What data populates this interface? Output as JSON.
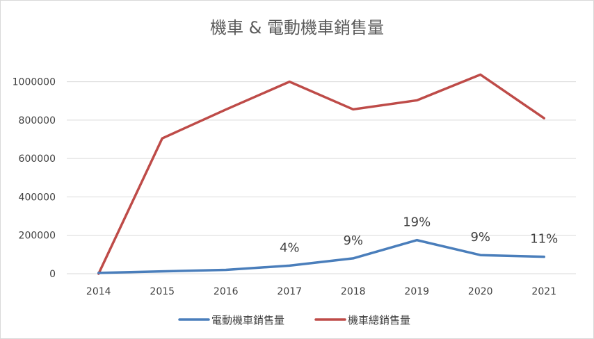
{
  "chart_data": {
    "type": "line",
    "title": "機車 & 電動機車銷售量",
    "categories": [
      "2014",
      "2015",
      "2016",
      "2017",
      "2018",
      "2019",
      "2020",
      "2021"
    ],
    "series": [
      {
        "name": "電動機車銷售量",
        "color": "#4a7ebb",
        "values": [
          4000,
          12000,
          20000,
          42000,
          80000,
          175000,
          97000,
          88000
        ]
      },
      {
        "name": "機車總銷售量",
        "color": "#be4b48",
        "values": [
          0,
          705000,
          855000,
          1000000,
          856000,
          903000,
          1037000,
          810000
        ]
      }
    ],
    "annotations": [
      {
        "category": "2017",
        "text": "4%"
      },
      {
        "category": "2018",
        "text": "9%"
      },
      {
        "category": "2019",
        "text": "19%"
      },
      {
        "category": "2020",
        "text": "9%"
      },
      {
        "category": "2021",
        "text": "11%"
      }
    ],
    "yticks": [
      "0",
      "200000",
      "400000",
      "600000",
      "800000",
      "1000000"
    ],
    "ylim": [
      0,
      1100000
    ],
    "grid": true,
    "legend": "bottom"
  }
}
